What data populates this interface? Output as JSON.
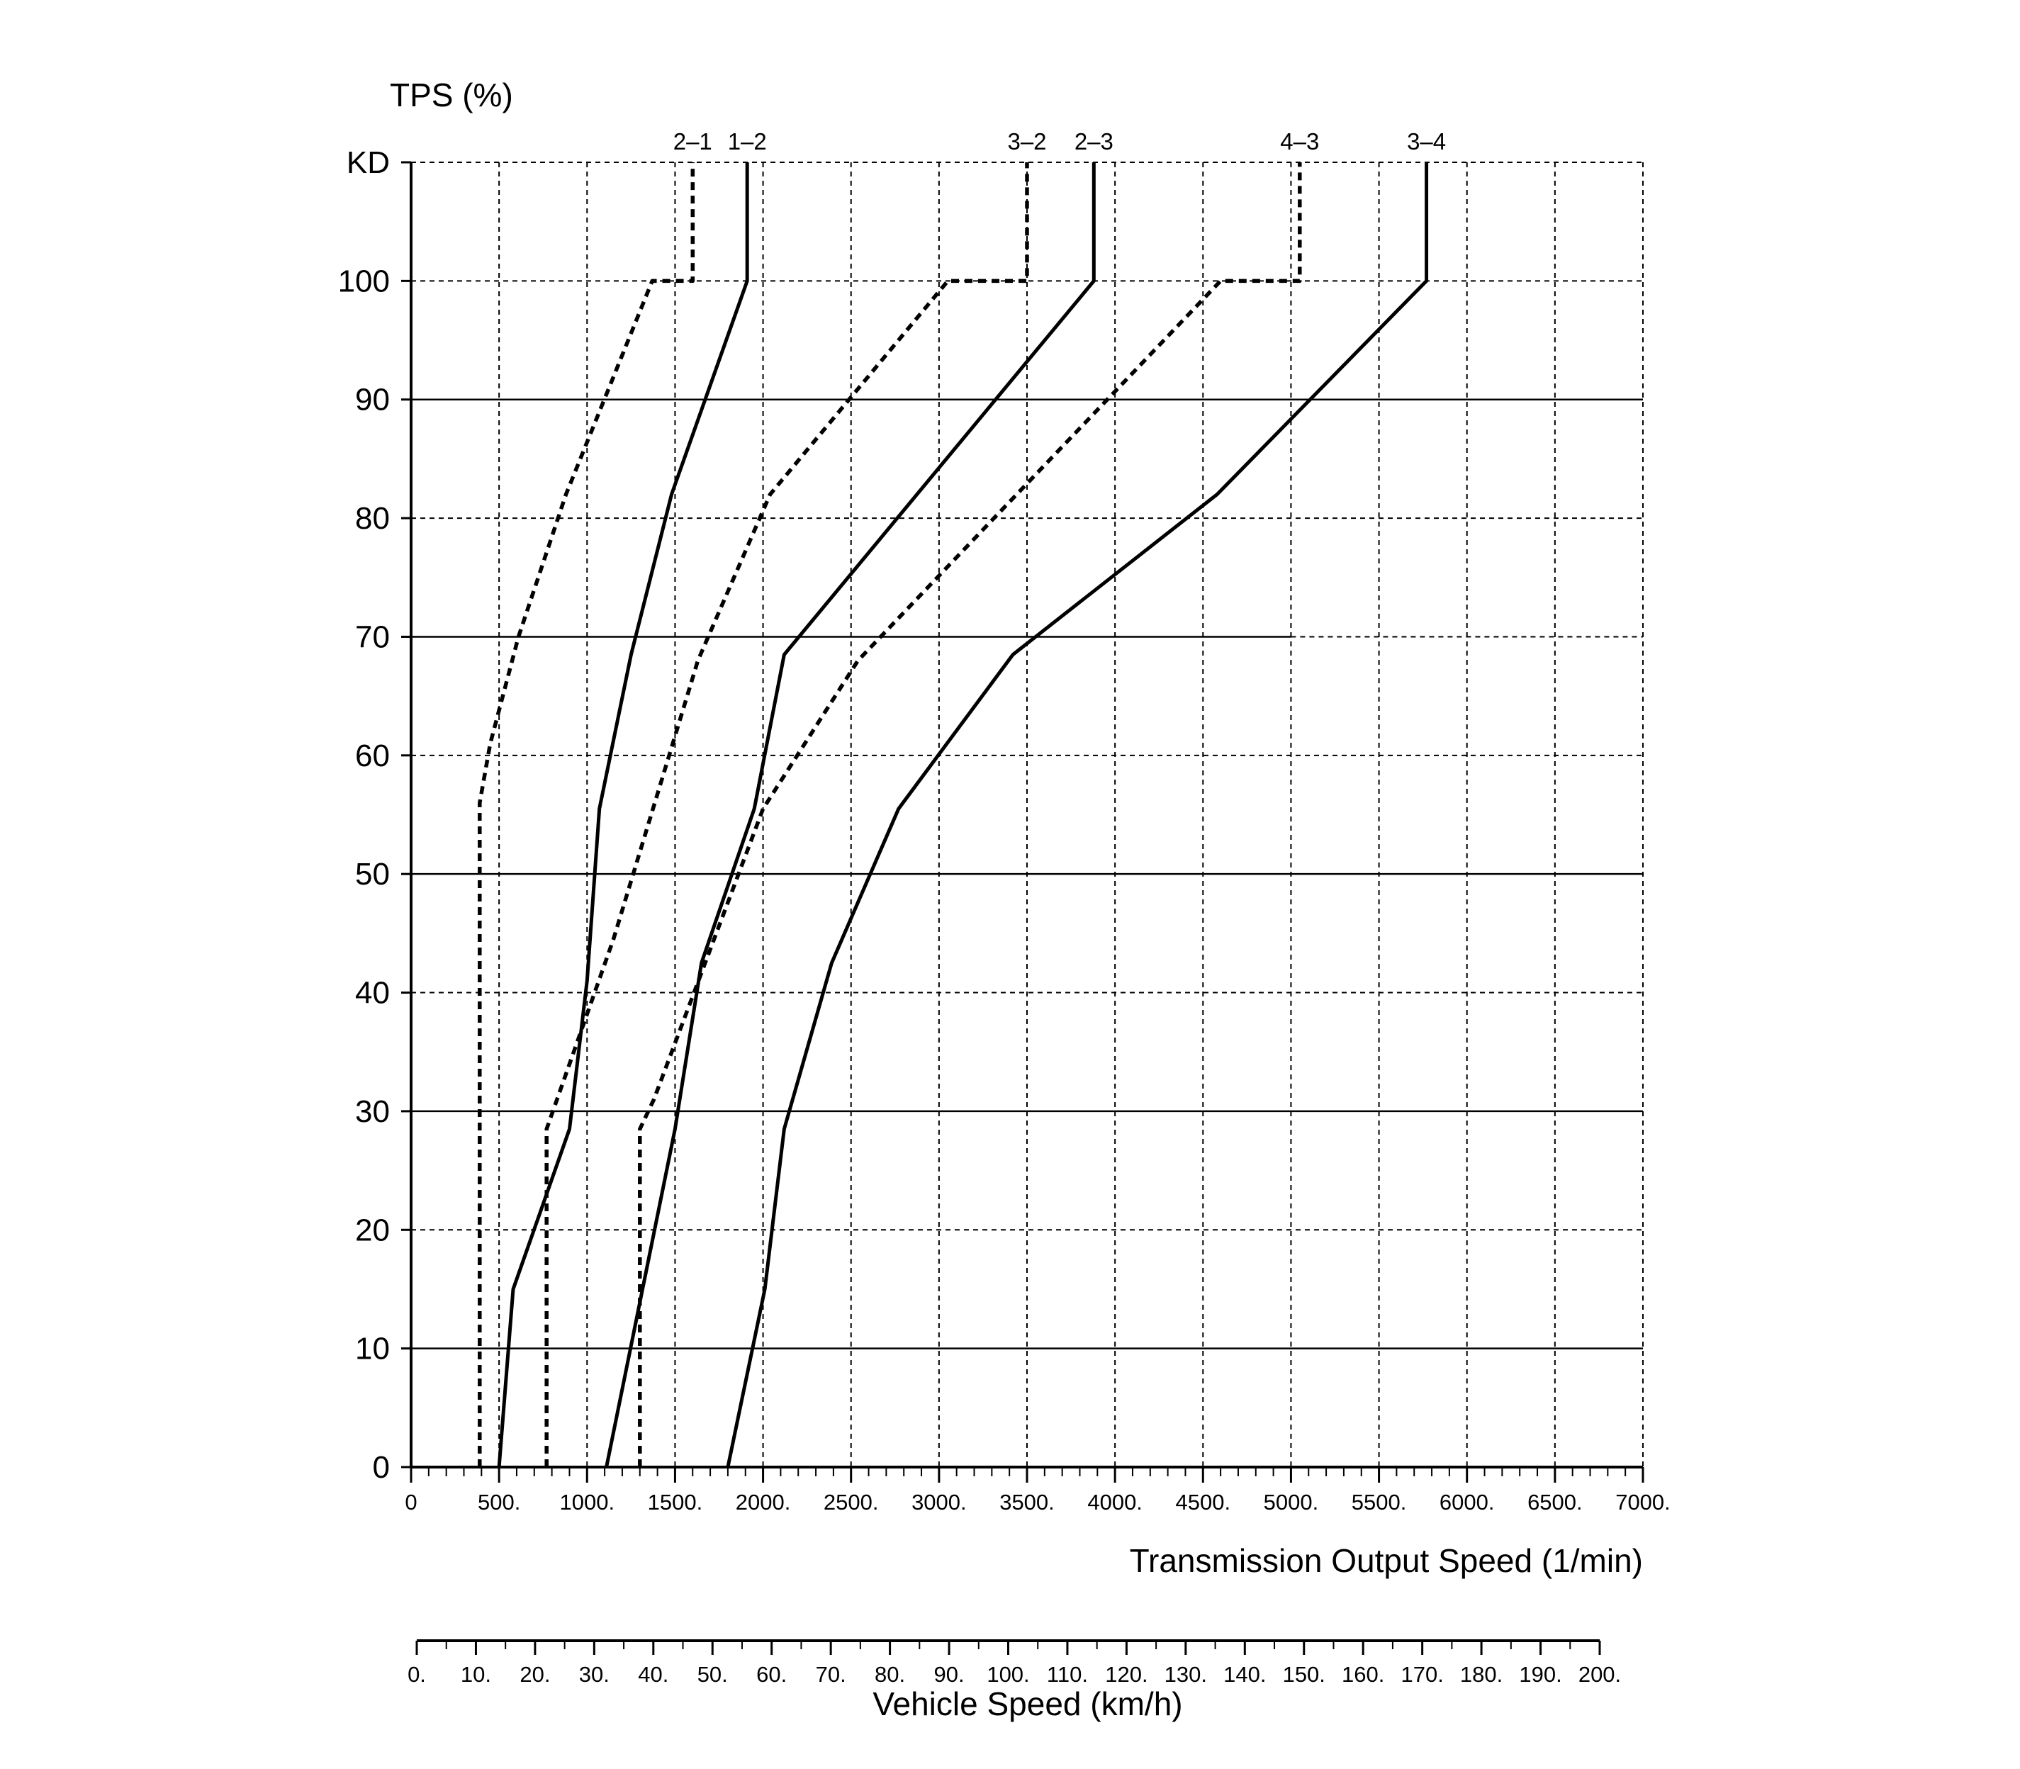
{
  "chart_data": {
    "type": "line",
    "y_axis": {
      "title": "TPS (%)",
      "ticks": [
        0,
        10,
        20,
        30,
        40,
        50,
        60,
        70,
        80,
        90,
        100
      ],
      "tick_labels": [
        "0",
        "10",
        "20",
        "30",
        "40",
        "50",
        "60",
        "70",
        "80",
        "90",
        "100"
      ],
      "kd_label": "KD",
      "kd_value": 110,
      "ylim": [
        0,
        110
      ]
    },
    "x_axis": {
      "title": "Transmission Output Speed (1/min)",
      "ticks": [
        0,
        500,
        1000,
        1500,
        2000,
        2500,
        3000,
        3500,
        4000,
        4500,
        5000,
        5500,
        6000,
        6500,
        7000
      ],
      "tick_labels": [
        "0",
        "500.",
        "1000.",
        "1500.",
        "2000.",
        "2500.",
        "3000.",
        "3500.",
        "4000.",
        "4500.",
        "5000.",
        "5500.",
        "6000.",
        "6500.",
        "7000."
      ],
      "xlim": [
        0,
        7000
      ]
    },
    "x2_axis": {
      "title": "Vehicle Speed (km/h)",
      "ticks": [
        0,
        10,
        20,
        30,
        40,
        50,
        60,
        70,
        80,
        90,
        100,
        110,
        120,
        130,
        140,
        150,
        160,
        170,
        180,
        190,
        200
      ],
      "tick_labels": [
        "0.",
        "10.",
        "20.",
        "30.",
        "40.",
        "50.",
        "60.",
        "70.",
        "80.",
        "90.",
        "100.",
        "110.",
        "120.",
        "130.",
        "140.",
        "150.",
        "160.",
        "170.",
        "180.",
        "190.",
        "200."
      ],
      "xlim": [
        0,
        200
      ]
    },
    "grid": true,
    "solid_gridlines_y": [
      10,
      30,
      50,
      70,
      90
    ],
    "series": [
      {
        "name": "2–1",
        "style": "dashed",
        "x": [
          390,
          390,
          450,
          610,
          880,
          1370,
          1600,
          1600
        ],
        "y": [
          0,
          56,
          61,
          70,
          82,
          100,
          100,
          110
        ]
      },
      {
        "name": "1–2",
        "style": "solid",
        "x": [
          500,
          580,
          900,
          1000,
          1070,
          1250,
          1480,
          1910,
          1910
        ],
        "y": [
          0,
          15,
          28.5,
          41,
          55.5,
          68.5,
          82,
          100,
          110
        ]
      },
      {
        "name": "3–2",
        "style": "dashed",
        "x": [
          770,
          770,
          1150,
          1630,
          2040,
          3050,
          3500,
          3500
        ],
        "y": [
          0,
          28.5,
          44.5,
          68,
          82,
          100,
          100,
          110
        ]
      },
      {
        "name": "2–3",
        "style": "solid",
        "x": [
          1110,
          1500,
          1650,
          1950,
          2120,
          3880,
          3880
        ],
        "y": [
          0,
          28.5,
          42.5,
          55.5,
          68.5,
          100,
          110
        ]
      },
      {
        "name": "4–3",
        "style": "dashed",
        "x": [
          1300,
          1300,
          1380,
          2000,
          2540,
          4600,
          5050,
          5050
        ],
        "y": [
          0,
          28.5,
          31,
          55.5,
          68,
          100,
          100,
          110
        ]
      },
      {
        "name": "3–4",
        "style": "solid",
        "x": [
          1800,
          2010,
          2120,
          2390,
          2770,
          3420,
          4580,
          5770,
          5770
        ],
        "y": [
          0,
          15,
          28.5,
          42.5,
          55.5,
          68.5,
          82,
          100,
          110
        ]
      }
    ]
  }
}
